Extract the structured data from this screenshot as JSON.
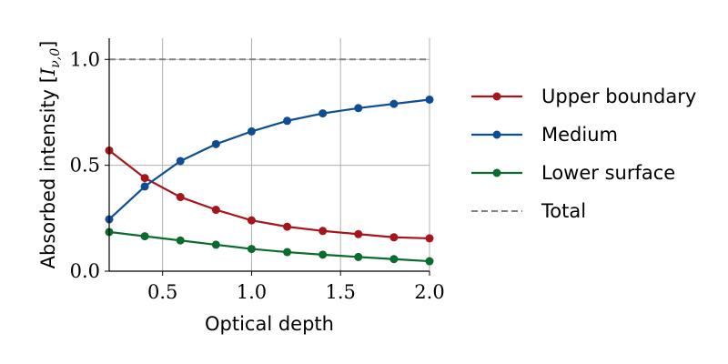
{
  "chart_data": {
    "type": "line",
    "xlabel": "Optical depth",
    "ylabel": "Absorbed intensity [I_{ν,0}]",
    "ylabel_main": "Absorbed intensity [",
    "ylabel_var": "I",
    "ylabel_sub": "ν,0",
    "ylabel_close": "]",
    "xlim": [
      0.2,
      2.0
    ],
    "ylim": [
      0.0,
      1.1
    ],
    "xticks": [
      0.5,
      1.0,
      1.5,
      2.0
    ],
    "xtick_labels": [
      "0.5",
      "1.0",
      "1.5",
      "2.0"
    ],
    "yticks": [
      0.0,
      0.5,
      1.0
    ],
    "ytick_labels": [
      "0.0",
      "0.5",
      "1.0"
    ],
    "grid": true,
    "legend_position": "right-outside",
    "x": [
      0.2,
      0.4,
      0.6,
      0.8,
      1.0,
      1.2,
      1.4,
      1.6,
      1.8,
      2.0
    ],
    "series": [
      {
        "name": "Upper boundary",
        "color": "#a6151b",
        "marker": true,
        "dashed": false,
        "values": [
          0.57,
          0.44,
          0.35,
          0.29,
          0.24,
          0.21,
          0.19,
          0.175,
          0.16,
          0.155
        ]
      },
      {
        "name": "Medium",
        "color": "#0e4d94",
        "marker": true,
        "dashed": false,
        "values": [
          0.245,
          0.4,
          0.52,
          0.6,
          0.66,
          0.71,
          0.745,
          0.77,
          0.79,
          0.81
        ]
      },
      {
        "name": "Lower surface",
        "color": "#0a6b2e",
        "marker": true,
        "dashed": false,
        "values": [
          0.185,
          0.165,
          0.145,
          0.125,
          0.105,
          0.09,
          0.078,
          0.067,
          0.057,
          0.047
        ]
      },
      {
        "name": "Total",
        "color": "#808080",
        "marker": false,
        "dashed": true,
        "values": [
          1.0,
          1.0,
          1.0,
          1.0,
          1.0,
          1.0,
          1.0,
          1.0,
          1.0,
          1.0
        ]
      }
    ]
  }
}
